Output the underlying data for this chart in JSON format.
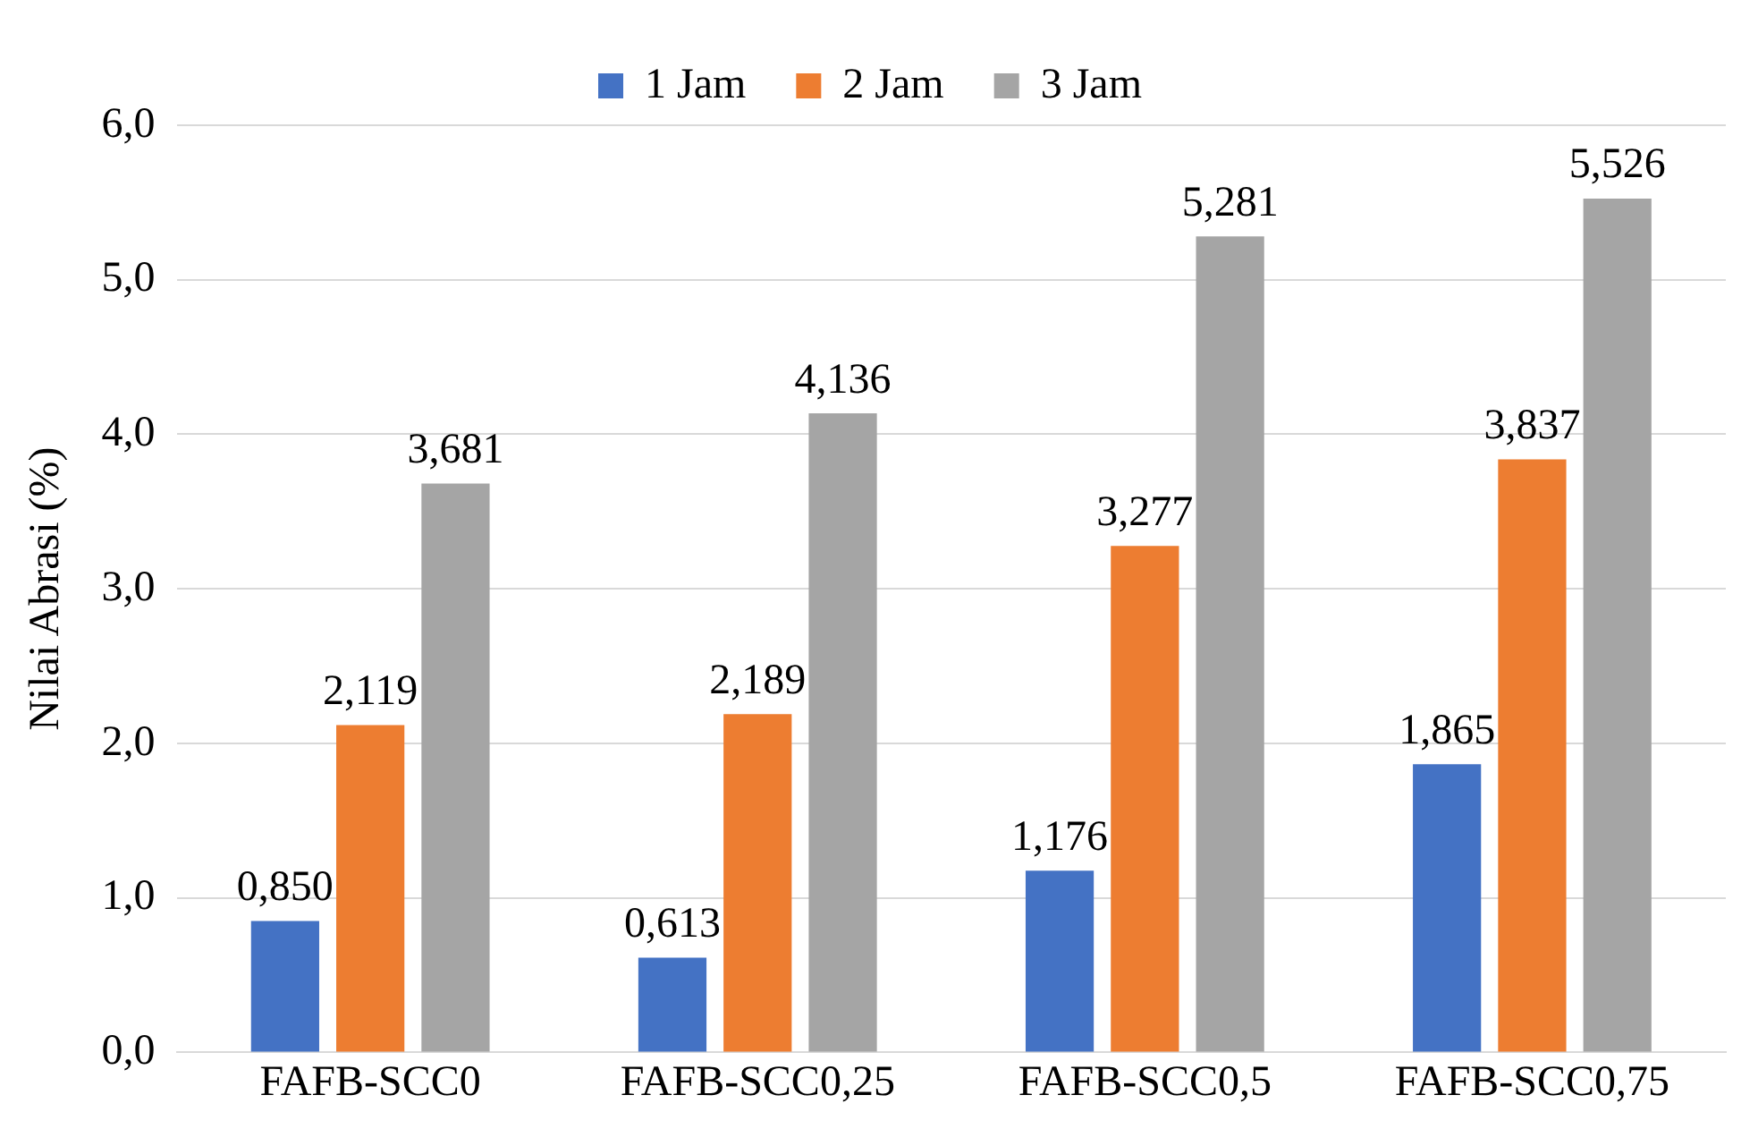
{
  "chart_data": {
    "type": "bar",
    "ylabel": "Nilai Abrasi (%)",
    "categories": [
      "FAFB-SCC0",
      "FAFB-SCC0,25",
      "FAFB-SCC0,5",
      "FAFB-SCC0,75"
    ],
    "series": [
      {
        "name": "1 Jam",
        "color": "#4472c4",
        "values": [
          0.85,
          0.613,
          1.176,
          1.865
        ],
        "value_labels": [
          "0,850",
          "0,613",
          "1,176",
          "1,865"
        ]
      },
      {
        "name": "2 Jam",
        "color": "#ed7d31",
        "values": [
          2.119,
          2.189,
          3.277,
          3.837
        ],
        "value_labels": [
          "2,119",
          "2,189",
          "3,277",
          "3,837"
        ]
      },
      {
        "name": "3 Jam",
        "color": "#a5a5a5",
        "values": [
          3.681,
          4.136,
          5.281,
          5.526
        ],
        "value_labels": [
          "3,681",
          "4,136",
          "5,281",
          "5,526"
        ]
      }
    ],
    "ylim": [
      0,
      6
    ],
    "yticks": [
      {
        "value": 0,
        "label": "0,0"
      },
      {
        "value": 1,
        "label": "1,0"
      },
      {
        "value": 2,
        "label": "2,0"
      },
      {
        "value": 3,
        "label": "3,0"
      },
      {
        "value": 4,
        "label": "4,0"
      },
      {
        "value": 5,
        "label": "5,0"
      },
      {
        "value": 6,
        "label": "6,0"
      }
    ],
    "grid": "y",
    "legend": "top"
  }
}
